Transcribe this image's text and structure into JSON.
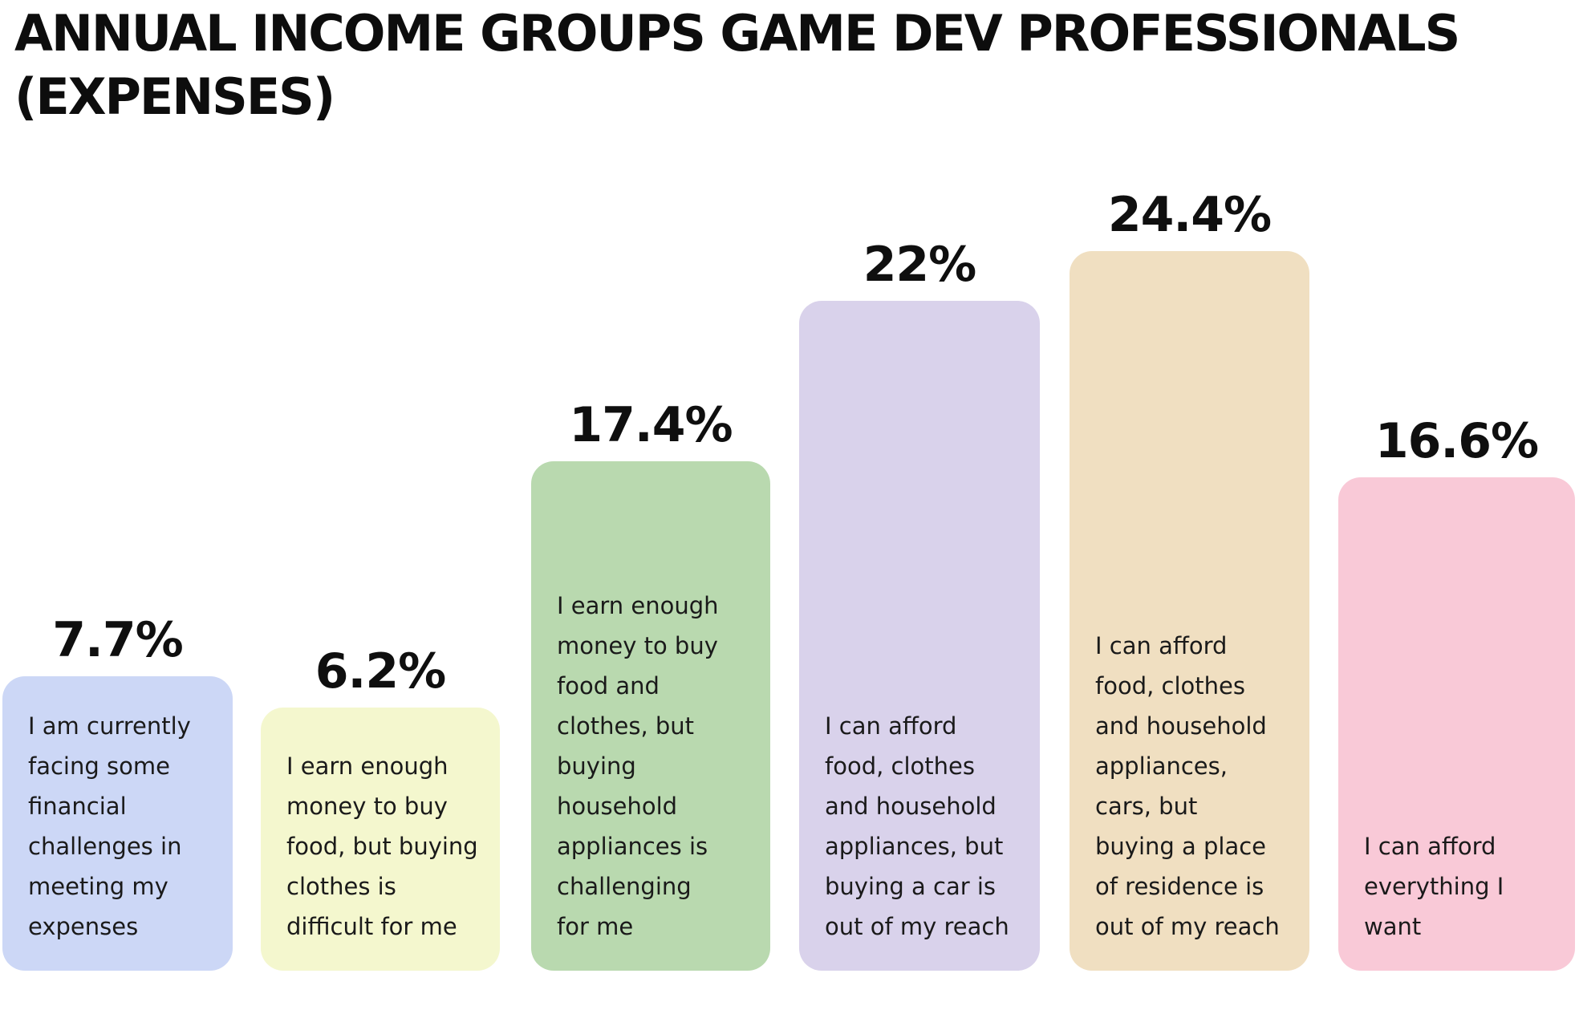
{
  "title_text": "ANNUAL INCOME GROUPS GAME DEV PROFESSIONALS\n(EXPENSES)",
  "chart_data": {
    "type": "bar",
    "title": "ANNUAL INCOME GROUPS GAME DEV PROFESSIONALS (EXPENSES)",
    "orientation": "vertical",
    "unit": "%",
    "axes_visible": false,
    "grid": false,
    "legend": false,
    "ylim": [
      0,
      27
    ],
    "background": "#ffffff",
    "text_color": "#111111",
    "categories": [
      "I am currently facing some financial challenges in meeting my expenses",
      "I earn enough money to buy food, but buying clothes is difficult for me",
      "I earn enough money to buy food and clothes, but buying household appliances is challenging for me",
      "I can afford food, clothes and household appliances, but buying a car is out of my reach",
      "I can afford food, clothes and household appliances, cars, but buying a place of residence is out of my reach",
      "I can afford everything I want"
    ],
    "values": [
      7.7,
      6.2,
      17.4,
      22.0,
      24.4,
      16.6
    ],
    "value_labels": [
      "7.7%",
      "6.2%",
      "17.4%",
      "22%",
      "24.4%",
      "16.6%"
    ],
    "bar_colors": [
      "#ccd7f6",
      "#f4f7ce",
      "#b9d9af",
      "#d9d2eb",
      "#f0dfc1",
      "#f9c9d7"
    ],
    "bars": [
      {
        "id": "financial-challenges",
        "value": 7.7,
        "value_label": "7.7%",
        "color": "#ccd7f6",
        "label_lines": "I am currently\nfacing some\nfinancial\nchallenges in\nmeeting my\nexpenses"
      },
      {
        "id": "food-not-clothes",
        "value": 6.2,
        "value_label": "6.2%",
        "color": "#f4f7ce",
        "label_lines": "I earn enough\nmoney to buy\nfood, but buying\nclothes is\ndifficult for me"
      },
      {
        "id": "clothes-not-appliances",
        "value": 17.4,
        "value_label": "17.4%",
        "color": "#b9d9af",
        "label_lines": "I earn enough\nmoney to buy\nfood and\nclothes, but\nbuying\nhousehold\nappliances is\nchallenging\nfor me"
      },
      {
        "id": "appliances-not-car",
        "value": 22.0,
        "value_label": "22%",
        "color": "#d9d2eb",
        "label_lines": "I can afford\nfood, clothes\nand household\nappliances, but\nbuying a car is\nout of my reach"
      },
      {
        "id": "car-not-residence",
        "value": 24.4,
        "value_label": "24.4%",
        "color": "#f0dfc1",
        "label_lines": "I can afford\nfood, clothes\nand household\nappliances,\ncars, but\nbuying a place\nof residence is\nout of my reach"
      },
      {
        "id": "everything",
        "value": 16.6,
        "value_label": "16.6%",
        "color": "#f9c9d7",
        "label_lines": "I can afford\neverything I\nwant"
      }
    ]
  }
}
